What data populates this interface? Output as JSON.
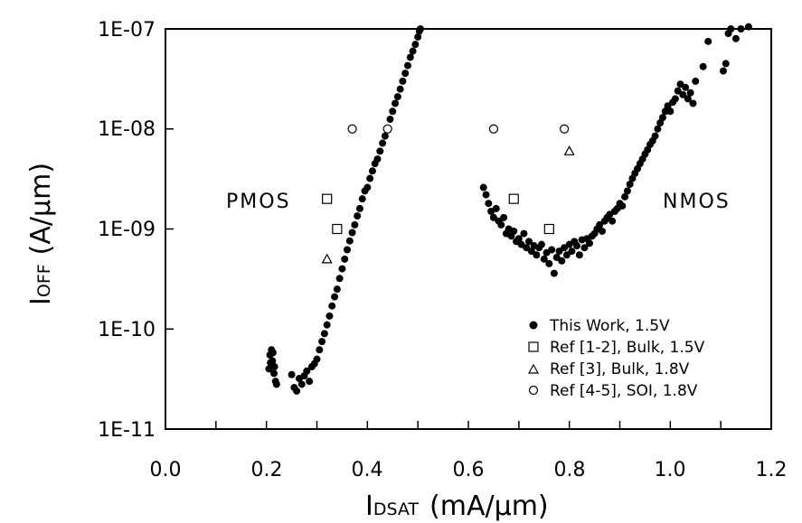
{
  "chart_data": {
    "type": "scatter",
    "x_axis": {
      "label_main": "I",
      "label_sub": "DSAT",
      "label_rest": "(mA/",
      "label_mu": "μ",
      "label_end": "m)",
      "range": [
        0.0,
        1.2
      ],
      "ticks": [
        "0.0",
        "0.2",
        "0.4",
        "0.6",
        "0.8",
        "1.0",
        "1.2"
      ],
      "minor_step": 0.1
    },
    "y_axis": {
      "label_main": "I",
      "label_sub": "OFF",
      "label_rest": "(A/",
      "label_mu": "μ",
      "label_end": "m)",
      "scale": "log",
      "range": [
        1e-11,
        1e-07
      ],
      "ticks": [
        "1E-11",
        "1E-10",
        "1E-09",
        "1E-08",
        "1E-07"
      ]
    },
    "annotations": [
      "PMOS",
      "NMOS"
    ],
    "series": [
      {
        "name": "This Work, 1.5V",
        "marker": "filled-circle",
        "points": [
          [
            0.205,
            4e-11
          ],
          [
            0.207,
            5.5e-11
          ],
          [
            0.21,
            6.2e-11
          ],
          [
            0.212,
            4.8e-11
          ],
          [
            0.215,
            3.6e-11
          ],
          [
            0.218,
            3e-11
          ],
          [
            0.22,
            2.8e-11
          ],
          [
            0.208,
            4.6e-11
          ],
          [
            0.213,
            5.8e-11
          ],
          [
            0.216,
            4.2e-11
          ],
          [
            0.25,
            3.5e-11
          ],
          [
            0.255,
            2.6e-11
          ],
          [
            0.26,
            2.4e-11
          ],
          [
            0.265,
            3.2e-11
          ],
          [
            0.27,
            2.8e-11
          ],
          [
            0.275,
            3.4e-11
          ],
          [
            0.28,
            3.8e-11
          ],
          [
            0.285,
            3e-11
          ],
          [
            0.29,
            4.2e-11
          ],
          [
            0.295,
            4.5e-11
          ],
          [
            0.3,
            5e-11
          ],
          [
            0.305,
            6.2e-11
          ],
          [
            0.31,
            7.5e-11
          ],
          [
            0.315,
            9e-11
          ],
          [
            0.32,
            1.1e-10
          ],
          [
            0.325,
            1.35e-10
          ],
          [
            0.33,
            1.7e-10
          ],
          [
            0.335,
            2.1e-10
          ],
          [
            0.34,
            2.5e-10
          ],
          [
            0.345,
            3.2e-10
          ],
          [
            0.35,
            4e-10
          ],
          [
            0.355,
            5e-10
          ],
          [
            0.36,
            6.2e-10
          ],
          [
            0.365,
            7.6e-10
          ],
          [
            0.37,
            9.2e-10
          ],
          [
            0.375,
            1.1e-09
          ],
          [
            0.38,
            1.35e-09
          ],
          [
            0.385,
            1.6e-09
          ],
          [
            0.39,
            2e-09
          ],
          [
            0.395,
            2.4e-09
          ],
          [
            0.4,
            2.6e-09
          ],
          [
            0.405,
            3.2e-09
          ],
          [
            0.41,
            3.8e-09
          ],
          [
            0.415,
            4.5e-09
          ],
          [
            0.42,
            5e-09
          ],
          [
            0.425,
            6e-09
          ],
          [
            0.43,
            7.2e-09
          ],
          [
            0.435,
            8.5e-09
          ],
          [
            0.44,
            1e-08
          ],
          [
            0.445,
            1.25e-08
          ],
          [
            0.45,
            1.5e-08
          ],
          [
            0.455,
            1.8e-08
          ],
          [
            0.46,
            2.1e-08
          ],
          [
            0.465,
            2.5e-08
          ],
          [
            0.47,
            3e-08
          ],
          [
            0.475,
            3.6e-08
          ],
          [
            0.48,
            4.3e-08
          ],
          [
            0.485,
            5.2e-08
          ],
          [
            0.49,
            6e-08
          ],
          [
            0.495,
            7e-08
          ],
          [
            0.5,
            8.3e-08
          ],
          [
            0.503,
            9.5e-08
          ],
          [
            0.505,
            1e-07
          ],
          [
            0.63,
            2.6e-09
          ],
          [
            0.635,
            2.2e-09
          ],
          [
            0.64,
            1.8e-09
          ],
          [
            0.645,
            1.5e-09
          ],
          [
            0.65,
            1.3e-09
          ],
          [
            0.655,
            1.6e-09
          ],
          [
            0.66,
            1.2e-09
          ],
          [
            0.665,
            1.1e-09
          ],
          [
            0.67,
            1.3e-09
          ],
          [
            0.675,
            9e-10
          ],
          [
            0.68,
            1e-09
          ],
          [
            0.685,
            8.5e-10
          ],
          [
            0.69,
            9.5e-10
          ],
          [
            0.695,
            7.5e-10
          ],
          [
            0.7,
            8e-10
          ],
          [
            0.705,
            7e-10
          ],
          [
            0.71,
            9e-10
          ],
          [
            0.715,
            6.5e-10
          ],
          [
            0.72,
            7.5e-10
          ],
          [
            0.725,
            6e-10
          ],
          [
            0.73,
            6.8e-10
          ],
          [
            0.735,
            5.5e-10
          ],
          [
            0.74,
            6.5e-10
          ],
          [
            0.745,
            7e-10
          ],
          [
            0.75,
            5e-10
          ],
          [
            0.755,
            5.8e-10
          ],
          [
            0.76,
            4.5e-10
          ],
          [
            0.765,
            6.2e-10
          ],
          [
            0.77,
            3.6e-10
          ],
          [
            0.775,
            5.2e-10
          ],
          [
            0.78,
            6e-10
          ],
          [
            0.785,
            4.8e-10
          ],
          [
            0.79,
            6.5e-10
          ],
          [
            0.795,
            5.5e-10
          ],
          [
            0.8,
            7e-10
          ],
          [
            0.805,
            6e-10
          ],
          [
            0.81,
            7.5e-10
          ],
          [
            0.815,
            6.8e-10
          ],
          [
            0.82,
            5.5e-10
          ],
          [
            0.825,
            7.8e-10
          ],
          [
            0.83,
            6.5e-10
          ],
          [
            0.835,
            8e-10
          ],
          [
            0.84,
            7.2e-10
          ],
          [
            0.845,
            8.5e-10
          ],
          [
            0.85,
            9e-10
          ],
          [
            0.855,
            1e-09
          ],
          [
            0.86,
            1.1e-09
          ],
          [
            0.865,
            9.5e-10
          ],
          [
            0.87,
            1.2e-09
          ],
          [
            0.875,
            1.3e-09
          ],
          [
            0.88,
            1.4e-09
          ],
          [
            0.885,
            1.2e-09
          ],
          [
            0.89,
            1.5e-09
          ],
          [
            0.895,
            1.6e-09
          ],
          [
            0.9,
            1.8e-09
          ],
          [
            0.905,
            1.7e-09
          ],
          [
            0.91,
            2.1e-09
          ],
          [
            0.915,
            2.4e-09
          ],
          [
            0.92,
            2.8e-09
          ],
          [
            0.925,
            3.2e-09
          ],
          [
            0.93,
            3.6e-09
          ],
          [
            0.935,
            4e-09
          ],
          [
            0.94,
            4.5e-09
          ],
          [
            0.945,
            5e-09
          ],
          [
            0.95,
            5.6e-09
          ],
          [
            0.955,
            6.2e-09
          ],
          [
            0.96,
            7e-09
          ],
          [
            0.965,
            7.6e-09
          ],
          [
            0.97,
            8.5e-09
          ],
          [
            0.975,
            1e-08
          ],
          [
            0.98,
            1.15e-08
          ],
          [
            0.985,
            1.3e-08
          ],
          [
            0.99,
            1.5e-08
          ],
          [
            0.995,
            1.7e-08
          ],
          [
            1.0,
            1.5e-08
          ],
          [
            1.005,
            1.85e-08
          ],
          [
            1.01,
            2e-08
          ],
          [
            1.015,
            2.4e-08
          ],
          [
            1.02,
            2.8e-08
          ],
          [
            1.025,
            2.2e-08
          ],
          [
            1.03,
            2.6e-08
          ],
          [
            1.035,
            2e-08
          ],
          [
            1.04,
            2.3e-08
          ],
          [
            1.045,
            1.8e-08
          ],
          [
            1.05,
            3e-08
          ],
          [
            1.065,
            4.2e-08
          ],
          [
            1.075,
            7.5e-08
          ],
          [
            1.105,
            3.8e-08
          ],
          [
            1.11,
            4.5e-08
          ],
          [
            1.115,
            9e-08
          ],
          [
            1.12,
            1e-07
          ],
          [
            1.13,
            8e-08
          ],
          [
            1.14,
            1e-07
          ],
          [
            1.155,
            1.05e-07
          ]
        ]
      },
      {
        "name": "Ref [1-2], Bulk, 1.5V",
        "marker": "open-square",
        "points": [
          [
            0.32,
            2e-09
          ],
          [
            0.34,
            1e-09
          ],
          [
            0.69,
            2e-09
          ],
          [
            0.76,
            1e-09
          ]
        ]
      },
      {
        "name": "Ref [3], Bulk,  1.8V",
        "marker": "open-triangle",
        "points": [
          [
            0.32,
            5e-10
          ],
          [
            0.8,
            6e-09
          ]
        ]
      },
      {
        "name": "Ref [4-5], SOI,  1.8V",
        "marker": "open-circle",
        "points": [
          [
            0.37,
            1e-08
          ],
          [
            0.44,
            1e-08
          ],
          [
            0.65,
            1e-08
          ],
          [
            0.79,
            1e-08
          ]
        ]
      }
    ],
    "legend_position": "bottom-right"
  }
}
